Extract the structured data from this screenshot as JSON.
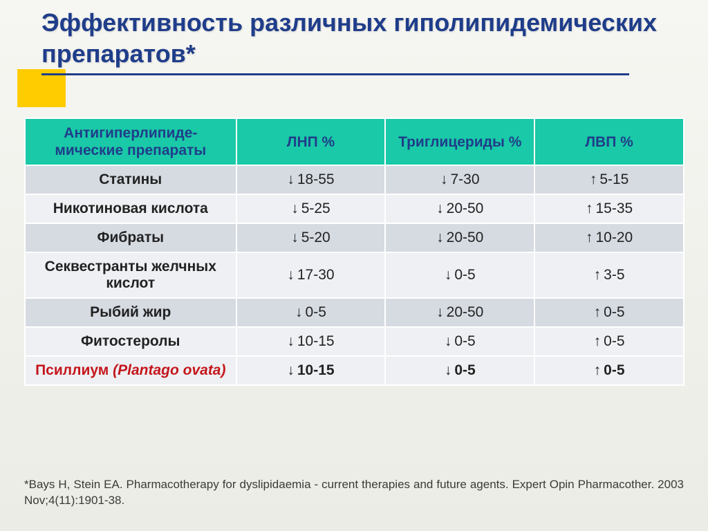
{
  "title": "Эффективность различных гиполипидемических препаратов*",
  "colors": {
    "title": "#1f3d8a",
    "underline": "#1f3d8a",
    "accent_block": "#ffcc00",
    "header_bg": "#1ac9a7",
    "header_text": "#1f3d8a",
    "row_alt_a": "#d6dbe2",
    "row_alt_b": "#eef0f3",
    "highlight_text": "#c4161c",
    "body_text": "#222222",
    "border": "#ffffff",
    "slide_bg_top": "#f6f6f2",
    "slide_bg_bottom": "#ecece6"
  },
  "typography": {
    "title_fontsize": 36,
    "title_weight": "bold",
    "header_fontsize": 21,
    "cell_fontsize": 21,
    "footnote_fontsize": 17
  },
  "table": {
    "columns": [
      "Антигиперлипиде-мические препараты",
      "ЛНП %",
      "Триглицериды %",
      "ЛВП %"
    ],
    "col_widths_pct": [
      32,
      22.6,
      22.6,
      22.6
    ],
    "down_arrow": "↓",
    "up_arrow": "↑",
    "rows": [
      {
        "drug": "Статины",
        "lnp": "18-55",
        "tg": "7-30",
        "lvp": "5-15",
        "bg": "a",
        "hl": false
      },
      {
        "drug": "Никотиновая кислота",
        "lnp": "5-25",
        "tg": "20-50",
        "lvp": "15-35",
        "bg": "b",
        "hl": false
      },
      {
        "drug": "Фибраты",
        "lnp": "5-20",
        "tg": "20-50",
        "lvp": "10-20",
        "bg": "a",
        "hl": false
      },
      {
        "drug": "Секвестранты желчных кислот",
        "lnp": "17-30",
        "tg": "0-5",
        "lvp": "3-5",
        "bg": "b",
        "hl": false
      },
      {
        "drug": "Рыбий жир",
        "lnp": "0-5",
        "tg": "20-50",
        "lvp": "0-5",
        "bg": "a",
        "hl": false
      },
      {
        "drug": "Фитостеролы",
        "lnp": "10-15",
        "tg": "0-5",
        "lvp": "0-5",
        "bg": "b",
        "hl": false
      },
      {
        "drug": "Псиллиум",
        "drug_latin": "(Plantago ovata)",
        "lnp": "10-15",
        "tg": "0-5",
        "lvp": "0-5",
        "bg": "b",
        "hl": true
      }
    ]
  },
  "footnote": "*Bays H, Stein EA.  Pharmacotherapy for dyslipidaemia - current therapies and future agents. Expert Opin Pharmacother. 2003 Nov;4(11):1901-38."
}
